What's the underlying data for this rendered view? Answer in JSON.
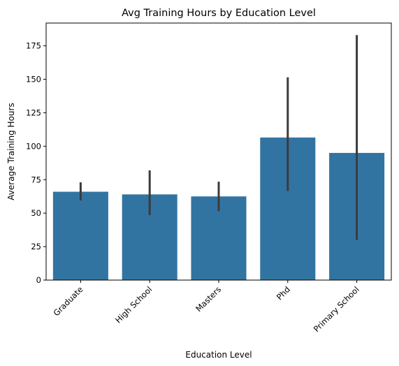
{
  "chart_data": {
    "type": "bar",
    "title": "Avg Training Hours by Education Level",
    "xlabel": "Education Level",
    "ylabel": "Average Training Hours",
    "categories": [
      "Graduate",
      "High School",
      "Masters",
      "Phd",
      "Primary School"
    ],
    "values": [
      66,
      64,
      62.5,
      106.5,
      95
    ],
    "error_bars": [
      {
        "low": 59.5,
        "high": 73
      },
      {
        "low": 48.5,
        "high": 82
      },
      {
        "low": 51.5,
        "high": 73.5
      },
      {
        "low": 66.5,
        "high": 151.5
      },
      {
        "low": 30,
        "high": 183
      }
    ],
    "ylim": [
      0,
      192
    ],
    "yticks": [
      0,
      25,
      50,
      75,
      100,
      125,
      150,
      175
    ],
    "bar_color": "#3274a1",
    "errorbar_color": "#3b3b3b",
    "grid": false,
    "legend": "none"
  }
}
